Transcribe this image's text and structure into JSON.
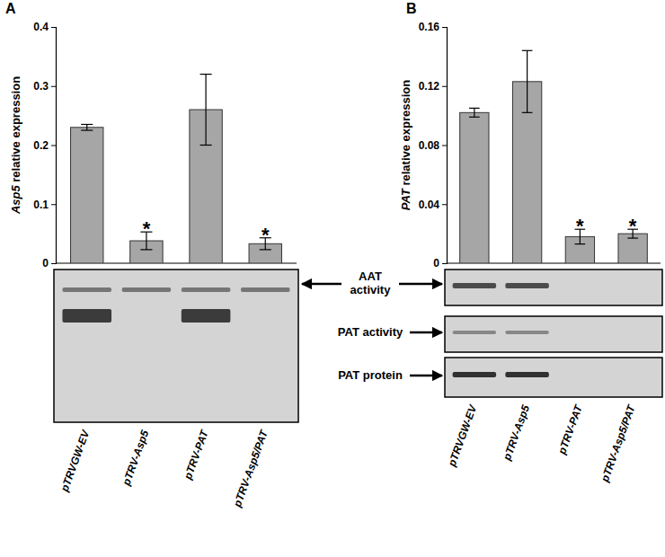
{
  "chart_data": [
    {
      "type": "bar",
      "title": "A",
      "y_label": "Asp5 relative expression",
      "categories": [
        "pTRVGW-EV",
        "pTRV-Asp5",
        "pTRV-PAT",
        "pTRV-Asp5/PAT"
      ],
      "values": [
        0.23,
        0.038,
        0.26,
        0.033
      ],
      "errors": [
        0.005,
        0.015,
        0.06,
        0.01
      ],
      "color": "#a6a6a6",
      "ylim": [
        0,
        0.4
      ],
      "yticks": [
        0,
        0.1,
        0.2,
        0.3,
        0.4
      ],
      "grid": false,
      "annotations": [
        {
          "text": "*",
          "category": "pTRV-Asp5"
        },
        {
          "text": "*",
          "category": "pTRV-Asp5/PAT"
        }
      ]
    },
    {
      "type": "bar",
      "title": "B",
      "y_label": "PAT relative expression",
      "categories": [
        "pTRVGW-EV",
        "pTRV-Asp5",
        "pTRV-PAT",
        "pTRV-Asp5/PAT"
      ],
      "values": [
        0.102,
        0.123,
        0.018,
        0.02
      ],
      "errors": [
        0.003,
        0.021,
        0.005,
        0.003
      ],
      "color": "#a6a6a6",
      "ylim": [
        0,
        0.16
      ],
      "yticks": [
        0,
        0.04,
        0.08,
        0.12,
        0.16
      ],
      "grid": false,
      "annotations": [
        {
          "text": "*",
          "category": "pTRV-PAT"
        },
        {
          "text": "*",
          "category": "pTRV-Asp5/PAT"
        }
      ]
    }
  ],
  "blot_labels": [
    "AAT activity",
    "PAT activity",
    "PAT protein"
  ]
}
